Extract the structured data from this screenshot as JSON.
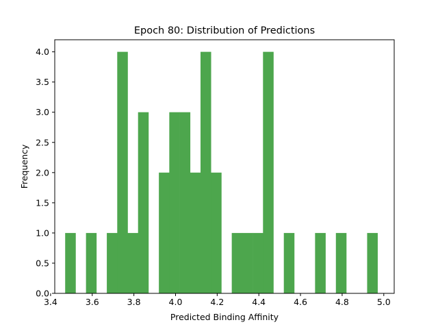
{
  "chart_data": {
    "type": "bar",
    "title": "Epoch 80: Distribution of Predictions",
    "xlabel": "Predicted Binding Affinity",
    "ylabel": "Frequency",
    "xlim": [
      3.42,
      5.05
    ],
    "ylim": [
      0,
      4.2
    ],
    "bin_width": 0.05,
    "bar_color": "#4da64d",
    "x_ticks": [
      {
        "value": 3.4,
        "label": "3.4"
      },
      {
        "value": 3.6,
        "label": "3.6"
      },
      {
        "value": 3.8,
        "label": "3.8"
      },
      {
        "value": 4.0,
        "label": "4.0"
      },
      {
        "value": 4.2,
        "label": "4.2"
      },
      {
        "value": 4.4,
        "label": "4.4"
      },
      {
        "value": 4.6,
        "label": "4.6"
      },
      {
        "value": 4.8,
        "label": "4.8"
      },
      {
        "value": 5.0,
        "label": "5.0"
      }
    ],
    "y_ticks": [
      {
        "value": 0.0,
        "label": "0.0"
      },
      {
        "value": 0.5,
        "label": "0.5"
      },
      {
        "value": 1.0,
        "label": "1.0"
      },
      {
        "value": 1.5,
        "label": "1.5"
      },
      {
        "value": 2.0,
        "label": "2.0"
      },
      {
        "value": 2.5,
        "label": "2.5"
      },
      {
        "value": 3.0,
        "label": "3.0"
      },
      {
        "value": 3.5,
        "label": "3.5"
      },
      {
        "value": 4.0,
        "label": "4.0"
      }
    ],
    "bins": [
      {
        "start": 3.47,
        "count": 1
      },
      {
        "start": 3.57,
        "count": 1
      },
      {
        "start": 3.67,
        "count": 1
      },
      {
        "start": 3.72,
        "count": 4
      },
      {
        "start": 3.77,
        "count": 1
      },
      {
        "start": 3.82,
        "count": 3
      },
      {
        "start": 3.92,
        "count": 2
      },
      {
        "start": 3.97,
        "count": 3
      },
      {
        "start": 4.02,
        "count": 3
      },
      {
        "start": 4.07,
        "count": 2
      },
      {
        "start": 4.12,
        "count": 4
      },
      {
        "start": 4.17,
        "count": 2
      },
      {
        "start": 4.27,
        "count": 1
      },
      {
        "start": 4.32,
        "count": 1
      },
      {
        "start": 4.37,
        "count": 1
      },
      {
        "start": 4.42,
        "count": 4
      },
      {
        "start": 4.52,
        "count": 1
      },
      {
        "start": 4.67,
        "count": 1
      },
      {
        "start": 4.77,
        "count": 1
      },
      {
        "start": 4.92,
        "count": 1
      }
    ]
  }
}
